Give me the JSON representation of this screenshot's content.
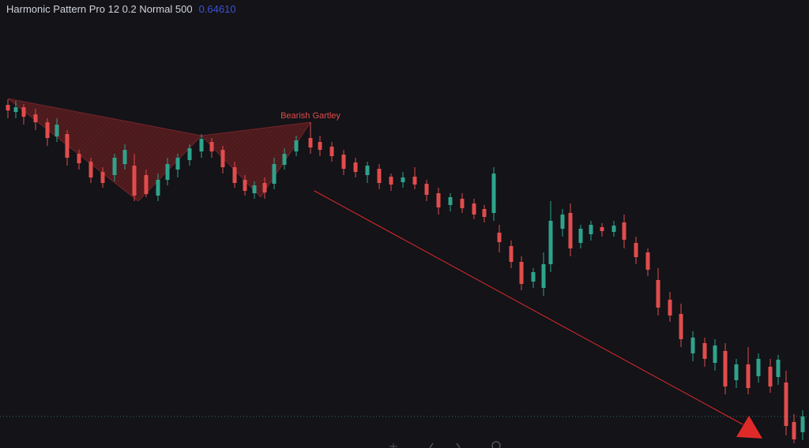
{
  "header": {
    "title": "Harmonic Pattern Pro 12 0.2 Normal 500",
    "value": "0.64610"
  },
  "pattern": {
    "label": "Bearish Gartley"
  }
}
